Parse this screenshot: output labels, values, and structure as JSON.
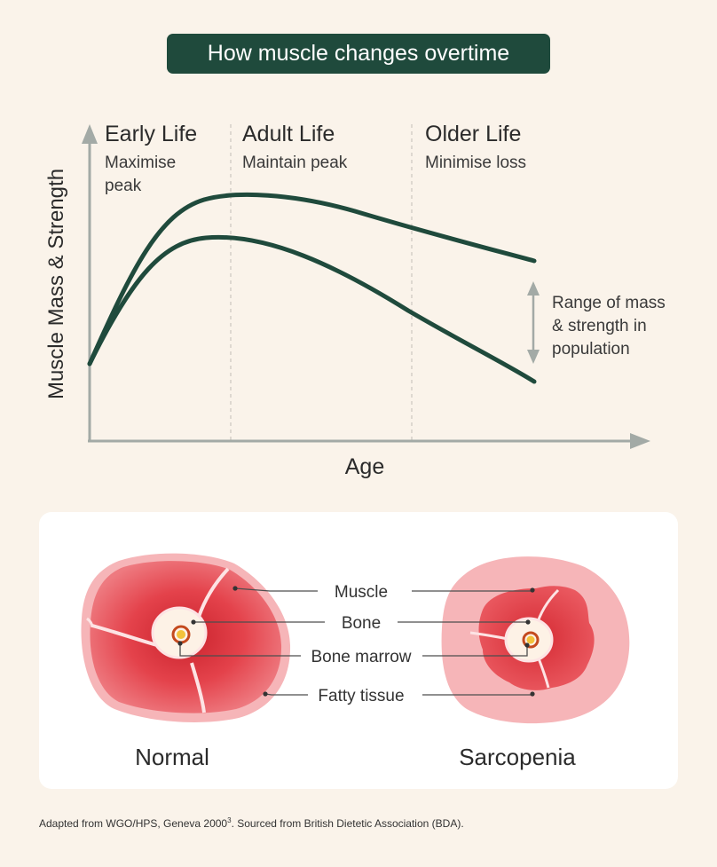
{
  "title": "How muscle changes overtime",
  "chart": {
    "ylabel": "Muscle Mass & Strength",
    "xlabel": "Age",
    "phases": [
      {
        "name": "Early Life",
        "lines": [
          "Maximise",
          "peak"
        ]
      },
      {
        "name": "Adult Life",
        "lines": [
          "Maintain peak"
        ]
      },
      {
        "name": "Older Life",
        "lines": [
          "Minimise loss"
        ]
      }
    ],
    "range_label": [
      "Range of mass",
      "& strength in",
      "population"
    ]
  },
  "cross_section": {
    "labels": [
      "Muscle",
      "Bone",
      "Bone marrow",
      "Fatty tissue"
    ],
    "normal": "Normal",
    "sarcopenia": "Sarcopenia"
  },
  "footnote": {
    "before": "Adapted from WGO/HPS, Geneva 2000",
    "sup": "3",
    "after": ". Sourced from British Dietetic Association (BDA)."
  },
  "colors": {
    "accent": "#1f4a3c",
    "muscle": "#e4424b",
    "fat": "#f6b5b8",
    "axis": "#a3aaa6"
  }
}
